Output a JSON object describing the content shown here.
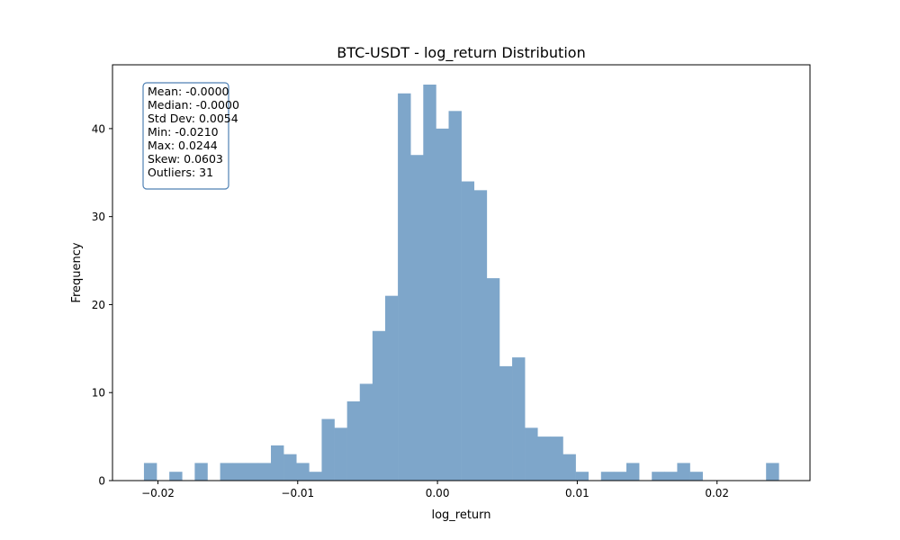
{
  "chart_data": {
    "type": "bar",
    "title": "BTC-USDT - log_return Distribution",
    "xlabel": "log_return",
    "ylabel": "Frequency",
    "xlim": [
      -0.02325,
      0.02665
    ],
    "ylim": [
      0,
      47.25
    ],
    "bin_start": -0.021,
    "bin_width": 0.0009083,
    "counts": [
      2,
      0,
      1,
      0,
      2,
      0,
      2,
      2,
      2,
      2,
      4,
      3,
      2,
      1,
      7,
      6,
      9,
      11,
      17,
      21,
      44,
      37,
      45,
      40,
      42,
      34,
      33,
      23,
      13,
      14,
      6,
      5,
      5,
      3,
      1,
      0,
      1,
      1,
      2,
      0,
      1,
      1,
      2,
      1,
      0,
      0,
      0,
      0,
      0,
      2
    ],
    "x_ticks": [
      -0.02,
      -0.01,
      0.0,
      0.01,
      0.02
    ],
    "x_tick_labels": [
      "−0.02",
      "−0.01",
      "0.00",
      "0.01",
      "0.02"
    ],
    "y_ticks": [
      0,
      10,
      20,
      30,
      40
    ],
    "y_tick_labels": [
      "0",
      "10",
      "20",
      "30",
      "40"
    ],
    "bar_color": "#7ea6ca",
    "stats_box_color": "#4f81b4",
    "stats": [
      "Mean: -0.0000",
      "Median: -0.0000",
      "Std Dev: 0.0054",
      "Min: -0.0210",
      "Max: 0.0244",
      "Skew: 0.0603",
      "Outliers: 31"
    ]
  }
}
